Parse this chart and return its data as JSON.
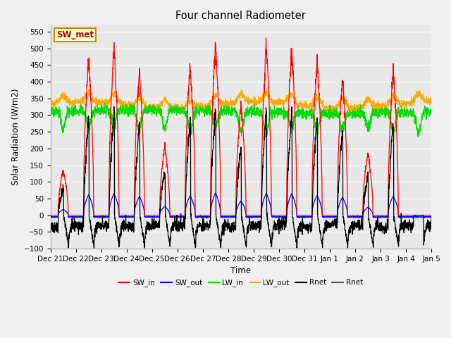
{
  "title": "Four channel Radiometer",
  "xlabel": "Time",
  "ylabel": "Solar Radiation (W/m2)",
  "ylim": [
    -100,
    570
  ],
  "yticks": [
    -100,
    -50,
    0,
    50,
    100,
    150,
    200,
    250,
    300,
    350,
    400,
    450,
    500,
    550
  ],
  "fig_bg": "#f0f0f0",
  "plot_bg": "#e8e8e8",
  "grid_color": "#ffffff",
  "annotation_text": "SW_met",
  "annotation_bg": "#ffffcc",
  "annotation_border": "#cc8800",
  "annotation_text_color": "#aa0000",
  "n_days": 15,
  "x_tick_labels": [
    "Dec 21",
    "Dec 22",
    "Dec 23",
    "Dec 24",
    "Dec 25",
    "Dec 26",
    "Dec 27",
    "Dec 28",
    "Dec 29",
    "Dec 30",
    "Dec 31",
    "Jan 1",
    "Jan 2",
    "Jan 3",
    "Jan 4",
    "Jan 5"
  ],
  "SW_in_peaks": [
    135,
    470,
    500,
    430,
    205,
    450,
    515,
    330,
    510,
    500,
    460,
    410,
    185,
    440,
    0
  ],
  "LW_in_base": 310,
  "LW_out_base": 330,
  "colors": {
    "SW_in": "#ff0000",
    "SW_out": "#0000ff",
    "LW_in": "#00dd00",
    "LW_out": "#ffaa00",
    "Rnet": "#000000"
  },
  "linewidth": 0.9
}
